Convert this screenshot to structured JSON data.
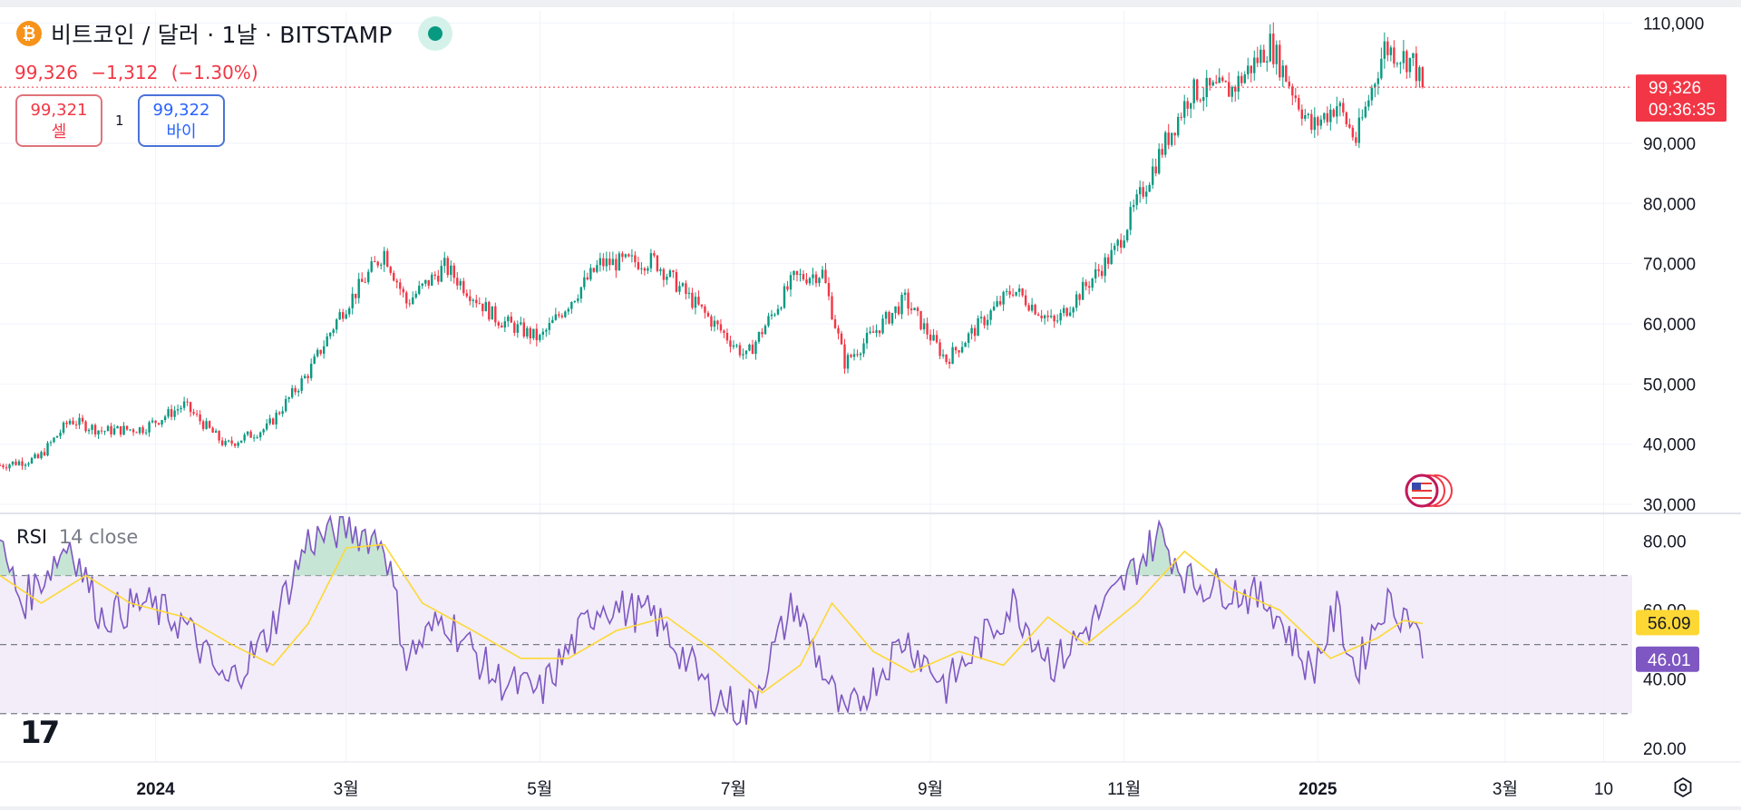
{
  "header": {
    "symbol_title": "비트코인 / 달러 · 1날 · BITSTAMP",
    "coin_glyph": "₿",
    "last_price": "99,326",
    "change": "−1,312",
    "change_pct": "(−1.30%)"
  },
  "trade": {
    "sell_price": "99,321",
    "sell_label": "셀",
    "spread": "1",
    "buy_price": "99,322",
    "buy_label": "바이"
  },
  "price_tag": {
    "price": "99,326",
    "countdown": "09:36:35"
  },
  "rsi": {
    "label": "RSI",
    "params": "14 close",
    "value": "46.01",
    "ma_value": "56.09"
  },
  "logo_text": "17",
  "colors": {
    "up": "#089981",
    "down": "#f23645",
    "rsi_line": "#7e57c2",
    "rsi_ma": "#fdd835",
    "rsi_band": "#ede7f6",
    "grid": "#f0f3fa"
  },
  "chart_data": {
    "type": "candlestick",
    "price_axis": {
      "ticks": [
        "110,000",
        "90,000",
        "80,000",
        "70,000",
        "60,000",
        "50,000",
        "40,000",
        "30,000"
      ],
      "tick_values": [
        110000,
        90000,
        80000,
        70000,
        60000,
        50000,
        40000,
        30000
      ],
      "range": [
        28500,
        112000
      ]
    },
    "rsi_axis": {
      "ticks": [
        "80.00",
        "60.00",
        "40.00",
        "20.00"
      ],
      "tick_values": [
        80,
        60,
        40,
        20
      ],
      "range": [
        16,
        88
      ],
      "bands": [
        30,
        50,
        70
      ]
    },
    "time_axis": {
      "labels": [
        "2024",
        "3월",
        "5월",
        "7월",
        "9월",
        "11월",
        "2025",
        "3월",
        "10"
      ],
      "bold": [
        true,
        false,
        false,
        false,
        false,
        false,
        true,
        false,
        false
      ],
      "label_dates": [
        "2024-01-01",
        "2024-03-01",
        "2024-05-01",
        "2024-07-01",
        "2024-09-01",
        "2024-11-01",
        "2025-01-01",
        "2025-03-01",
        "2025-04-01"
      ],
      "range": [
        "2023-11-13",
        "2025-04-10"
      ]
    },
    "price_series": [
      [
        "2023-11-13",
        36500
      ],
      [
        "2023-11-25",
        37600
      ],
      [
        "2023-12-05",
        44000
      ],
      [
        "2023-12-15",
        42200
      ],
      [
        "2023-12-28",
        42600
      ],
      [
        "2024-01-10",
        46500
      ],
      [
        "2024-01-23",
        39800
      ],
      [
        "2024-02-05",
        42700
      ],
      [
        "2024-02-18",
        51800
      ],
      [
        "2024-02-28",
        61500
      ],
      [
        "2024-03-13",
        72000
      ],
      [
        "2024-03-20",
        63500
      ],
      [
        "2024-04-01",
        69500
      ],
      [
        "2024-04-17",
        61000
      ],
      [
        "2024-05-01",
        57500
      ],
      [
        "2024-05-20",
        70000
      ],
      [
        "2024-06-06",
        70500
      ],
      [
        "2024-06-24",
        60500
      ],
      [
        "2024-07-05",
        54500
      ],
      [
        "2024-07-20",
        67500
      ],
      [
        "2024-07-29",
        68500
      ],
      [
        "2024-08-05",
        53500
      ],
      [
        "2024-08-24",
        64000
      ],
      [
        "2024-09-06",
        54000
      ],
      [
        "2024-09-27",
        65800
      ],
      [
        "2024-10-10",
        60000
      ],
      [
        "2024-10-29",
        72000
      ],
      [
        "2024-11-12",
        88000
      ],
      [
        "2024-11-22",
        98500
      ],
      [
        "2024-12-05",
        99000
      ],
      [
        "2024-12-17",
        106500
      ],
      [
        "2024-12-30",
        92500
      ],
      [
        "2025-01-07",
        96500
      ],
      [
        "2025-01-13",
        90500
      ],
      [
        "2025-01-22",
        106000
      ],
      [
        "2025-01-31",
        103500
      ],
      [
        "2025-02-03",
        99326
      ]
    ],
    "rsi_series": [
      [
        "2023-11-13",
        78
      ],
      [
        "2023-11-20",
        62
      ],
      [
        "2023-12-05",
        80
      ],
      [
        "2023-12-15",
        58
      ],
      [
        "2023-12-28",
        62
      ],
      [
        "2024-01-10",
        56
      ],
      [
        "2024-01-23",
        38
      ],
      [
        "2024-02-05",
        52
      ],
      [
        "2024-02-18",
        80
      ],
      [
        "2024-03-01",
        84
      ],
      [
        "2024-03-13",
        80
      ],
      [
        "2024-03-20",
        46
      ],
      [
        "2024-04-01",
        58
      ],
      [
        "2024-04-17",
        40
      ],
      [
        "2024-05-01",
        36
      ],
      [
        "2024-05-20",
        62
      ],
      [
        "2024-06-06",
        58
      ],
      [
        "2024-06-24",
        36
      ],
      [
        "2024-07-05",
        30
      ],
      [
        "2024-07-20",
        62
      ],
      [
        "2024-08-05",
        28
      ],
      [
        "2024-08-24",
        52
      ],
      [
        "2024-09-06",
        38
      ],
      [
        "2024-09-27",
        62
      ],
      [
        "2024-10-10",
        44
      ],
      [
        "2024-10-29",
        64
      ],
      [
        "2024-11-12",
        82
      ],
      [
        "2024-11-22",
        68
      ],
      [
        "2024-12-05",
        66
      ],
      [
        "2024-12-17",
        62
      ],
      [
        "2024-12-30",
        42
      ],
      [
        "2025-01-07",
        60
      ],
      [
        "2025-01-13",
        42
      ],
      [
        "2025-01-22",
        62
      ],
      [
        "2025-01-31",
        58
      ],
      [
        "2025-02-03",
        46
      ]
    ],
    "rsi_ma_series": [
      [
        "2023-11-13",
        70
      ],
      [
        "2023-11-26",
        62
      ],
      [
        "2023-12-10",
        70
      ],
      [
        "2023-12-24",
        62
      ],
      [
        "2024-01-10",
        58
      ],
      [
        "2024-01-25",
        50
      ],
      [
        "2024-02-07",
        44
      ],
      [
        "2024-02-18",
        56
      ],
      [
        "2024-03-01",
        78
      ],
      [
        "2024-03-13",
        79
      ],
      [
        "2024-03-25",
        62
      ],
      [
        "2024-04-10",
        54
      ],
      [
        "2024-04-25",
        46
      ],
      [
        "2024-05-10",
        46
      ],
      [
        "2024-05-25",
        54
      ],
      [
        "2024-06-10",
        58
      ],
      [
        "2024-06-25",
        48
      ],
      [
        "2024-07-10",
        36
      ],
      [
        "2024-07-22",
        44
      ],
      [
        "2024-08-01",
        62
      ],
      [
        "2024-08-14",
        48
      ],
      [
        "2024-08-26",
        42
      ],
      [
        "2024-09-10",
        48
      ],
      [
        "2024-09-24",
        44
      ],
      [
        "2024-10-08",
        58
      ],
      [
        "2024-10-20",
        50
      ],
      [
        "2024-11-05",
        62
      ],
      [
        "2024-11-20",
        77
      ],
      [
        "2024-12-05",
        66
      ],
      [
        "2024-12-20",
        60
      ],
      [
        "2025-01-05",
        46
      ],
      [
        "2025-01-20",
        52
      ],
      [
        "2025-01-28",
        57
      ],
      [
        "2025-02-03",
        56.09
      ]
    ]
  }
}
